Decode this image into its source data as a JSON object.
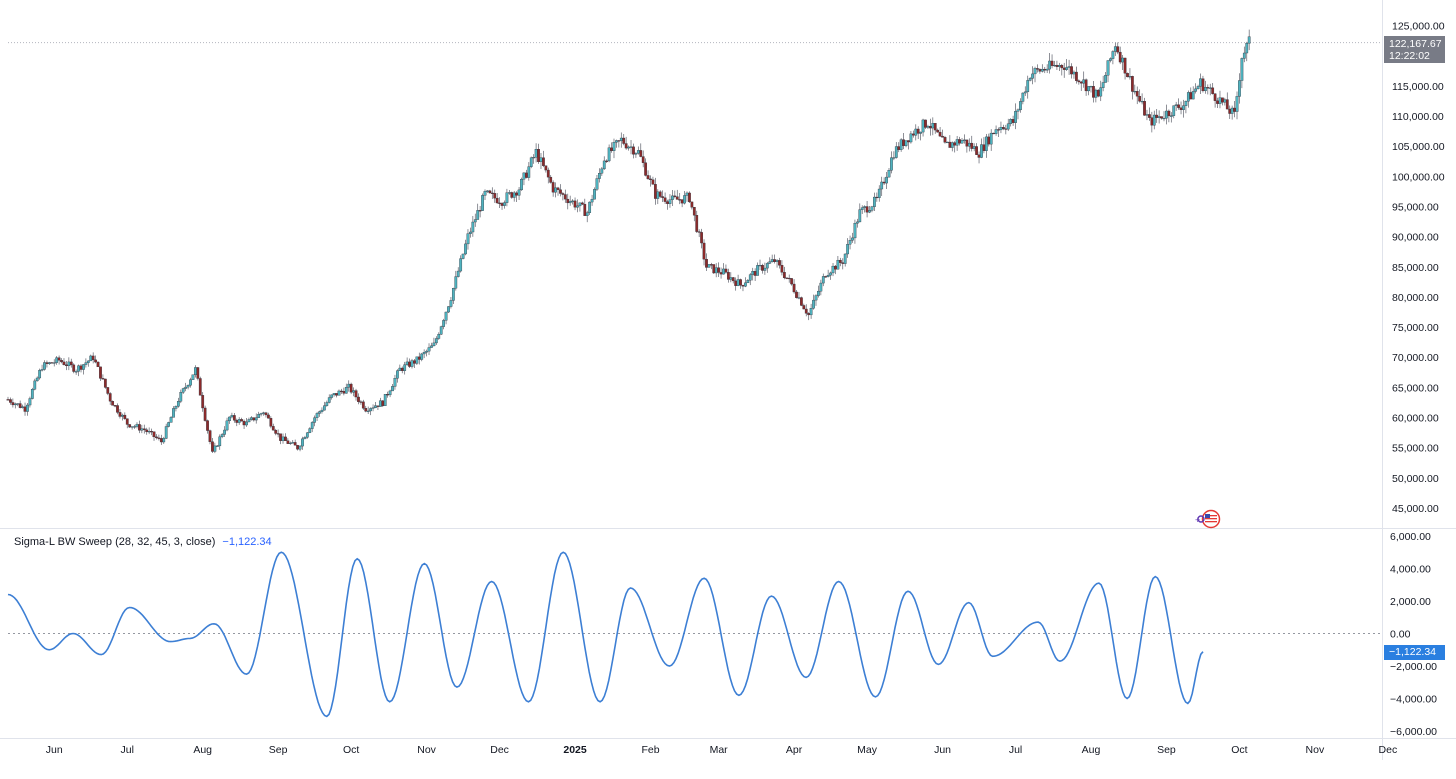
{
  "price_axis": {
    "ticks": [
      "125,000.00",
      "120,000.00",
      "115,000.00",
      "110,000.00",
      "105,000.00",
      "100,000.00",
      "95,000.00",
      "90,000.00",
      "85,000.00",
      "80,000.00",
      "75,000.00",
      "70,000.00",
      "65,000.00",
      "60,000.00",
      "55,000.00",
      "50,000.00",
      "45,000.00"
    ],
    "tick_values": [
      125000,
      120000,
      115000,
      110000,
      105000,
      100000,
      95000,
      90000,
      85000,
      80000,
      75000,
      70000,
      65000,
      60000,
      55000,
      50000,
      45000
    ]
  },
  "last_price": {
    "value": 122167.67,
    "label": "122,167.67",
    "countdown": "12:22:02"
  },
  "indicator": {
    "title": "Sigma-L BW Sweep (28, 32, 45, 3, close)",
    "value_label": "−1,122.34",
    "value": -1122.34,
    "axis_ticks": [
      "6,000.00",
      "4,000.00",
      "2,000.00",
      "0.00",
      "−2,000.00",
      "−4,000.00",
      "−6,000.00"
    ],
    "axis_values": [
      6000,
      4000,
      2000,
      0,
      -2000,
      -4000,
      -6000
    ]
  },
  "time_axis": {
    "labels": [
      "Jun",
      "Jul",
      "Aug",
      "Sep",
      "Oct",
      "Nov",
      "Dec",
      "2025",
      "Feb",
      "Mar",
      "Apr",
      "May",
      "Jun",
      "Jul",
      "Aug",
      "Sep",
      "Oct",
      "Nov",
      "Dec"
    ],
    "bold": [
      false,
      false,
      false,
      false,
      false,
      false,
      false,
      true,
      false,
      false,
      false,
      false,
      false,
      false,
      false,
      false,
      false,
      false,
      false
    ]
  },
  "colors": {
    "up": "#4fb3bf",
    "down": "#8c2a2a",
    "wick": "#5d606b",
    "oscillator": "#3d7fd4",
    "grid": "#f0f3fa"
  },
  "chart_data": [
    {
      "type": "candlestick",
      "title": "",
      "x_range": [
        "2024-05-13",
        "2025-10-05"
      ],
      "ylim": [
        43000,
        127000
      ],
      "close_path": [
        [
          "2024-05-13",
          63000
        ],
        [
          "2024-05-20",
          61500
        ],
        [
          "2024-05-27",
          68500
        ],
        [
          "2024-06-03",
          69500
        ],
        [
          "2024-06-10",
          68000
        ],
        [
          "2024-06-17",
          70000
        ],
        [
          "2024-06-24",
          63000
        ],
        [
          "2024-07-01",
          59000
        ],
        [
          "2024-07-08",
          58000
        ],
        [
          "2024-07-15",
          56000
        ],
        [
          "2024-07-22",
          63000
        ],
        [
          "2024-07-29",
          68000
        ],
        [
          "2024-08-05",
          54000
        ],
        [
          "2024-08-12",
          60000
        ],
        [
          "2024-08-19",
          59000
        ],
        [
          "2024-08-26",
          61000
        ],
        [
          "2024-09-02",
          56500
        ],
        [
          "2024-09-09",
          55000
        ],
        [
          "2024-09-16",
          60000
        ],
        [
          "2024-09-23",
          63500
        ],
        [
          "2024-09-30",
          65000
        ],
        [
          "2024-10-07",
          61500
        ],
        [
          "2024-10-14",
          62500
        ],
        [
          "2024-10-21",
          68000
        ],
        [
          "2024-10-28",
          69500
        ],
        [
          "2024-11-04",
          72000
        ],
        [
          "2024-11-11",
          80000
        ],
        [
          "2024-11-18",
          90000
        ],
        [
          "2024-11-25",
          97000
        ],
        [
          "2024-12-02",
          96000
        ],
        [
          "2024-12-09",
          98000
        ],
        [
          "2024-12-16",
          104000
        ],
        [
          "2024-12-23",
          98000
        ],
        [
          "2024-12-30",
          96000
        ],
        [
          "2025-01-06",
          94000
        ],
        [
          "2025-01-13",
          103000
        ],
        [
          "2025-01-20",
          106000
        ],
        [
          "2025-01-27",
          104000
        ],
        [
          "2025-02-03",
          97000
        ],
        [
          "2025-02-10",
          96000
        ],
        [
          "2025-02-17",
          96500
        ],
        [
          "2025-02-24",
          85000
        ],
        [
          "2025-03-03",
          84000
        ],
        [
          "2025-03-10",
          82000
        ],
        [
          "2025-03-17",
          84500
        ],
        [
          "2025-03-24",
          86000
        ],
        [
          "2025-03-31",
          82000
        ],
        [
          "2025-04-07",
          77000
        ],
        [
          "2025-04-14",
          84000
        ],
        [
          "2025-04-21",
          86000
        ],
        [
          "2025-04-28",
          94000
        ],
        [
          "2025-05-05",
          96000
        ],
        [
          "2025-05-12",
          104000
        ],
        [
          "2025-05-19",
          107000
        ],
        [
          "2025-05-26",
          109000
        ],
        [
          "2025-06-02",
          105000
        ],
        [
          "2025-06-09",
          106000
        ],
        [
          "2025-06-16",
          104000
        ],
        [
          "2025-06-23",
          108000
        ],
        [
          "2025-06-30",
          109000
        ],
        [
          "2025-07-07",
          117000
        ],
        [
          "2025-07-14",
          118000
        ],
        [
          "2025-07-21",
          118500
        ],
        [
          "2025-07-28",
          116000
        ],
        [
          "2025-08-04",
          113000
        ],
        [
          "2025-08-11",
          122000
        ],
        [
          "2025-08-18",
          115000
        ],
        [
          "2025-08-25",
          109000
        ],
        [
          "2025-09-01",
          110500
        ],
        [
          "2025-09-08",
          112000
        ],
        [
          "2025-09-15",
          115500
        ],
        [
          "2025-09-22",
          113000
        ],
        [
          "2025-09-29",
          110000
        ],
        [
          "2025-10-02",
          120000
        ],
        [
          "2025-10-05",
          122167.67
        ]
      ]
    },
    {
      "type": "line",
      "title": "Sigma-L BW Sweep (28, 32, 45, 3, close)",
      "ylim": [
        -6300,
        6300
      ],
      "extrema": [
        [
          "2024-05-13",
          2400
        ],
        [
          "2024-06-01",
          -1000
        ],
        [
          "2024-06-12",
          0
        ],
        [
          "2024-06-25",
          -1300
        ],
        [
          "2024-07-08",
          1600
        ],
        [
          "2024-07-27",
          -500
        ],
        [
          "2024-08-05",
          -300
        ],
        [
          "2024-08-16",
          600
        ],
        [
          "2024-08-31",
          -2500
        ],
        [
          "2024-09-16",
          5000
        ],
        [
          "2024-10-07",
          -5100
        ],
        [
          "2024-10-21",
          4600
        ],
        [
          "2024-11-05",
          -4200
        ],
        [
          "2024-11-21",
          4300
        ],
        [
          "2024-12-06",
          -3300
        ],
        [
          "2024-12-22",
          3200
        ],
        [
          "2025-01-08",
          -4200
        ],
        [
          "2025-01-24",
          5000
        ],
        [
          "2025-02-10",
          -4200
        ],
        [
          "2025-02-24",
          2800
        ],
        [
          "2025-03-14",
          -2000
        ],
        [
          "2025-03-30",
          3400
        ],
        [
          "2025-04-15",
          -3800
        ],
        [
          "2025-04-30",
          2300
        ],
        [
          "2025-05-16",
          -2700
        ],
        [
          "2025-05-31",
          3200
        ],
        [
          "2025-06-17",
          -3900
        ],
        [
          "2025-07-02",
          2600
        ],
        [
          "2025-07-16",
          -1900
        ],
        [
          "2025-07-30",
          1900
        ],
        [
          "2025-08-10",
          -1400
        ],
        [
          "2025-08-31",
          700
        ],
        [
          "2025-09-10",
          -1700
        ],
        [
          "2025-09-28",
          3100
        ],
        [
          "2025-10-11",
          -4000
        ],
        [
          "2025-10-24",
          3500
        ],
        [
          "2025-11-08",
          -4300
        ],
        [
          "2025-11-15",
          -1122.34
        ]
      ]
    }
  ]
}
